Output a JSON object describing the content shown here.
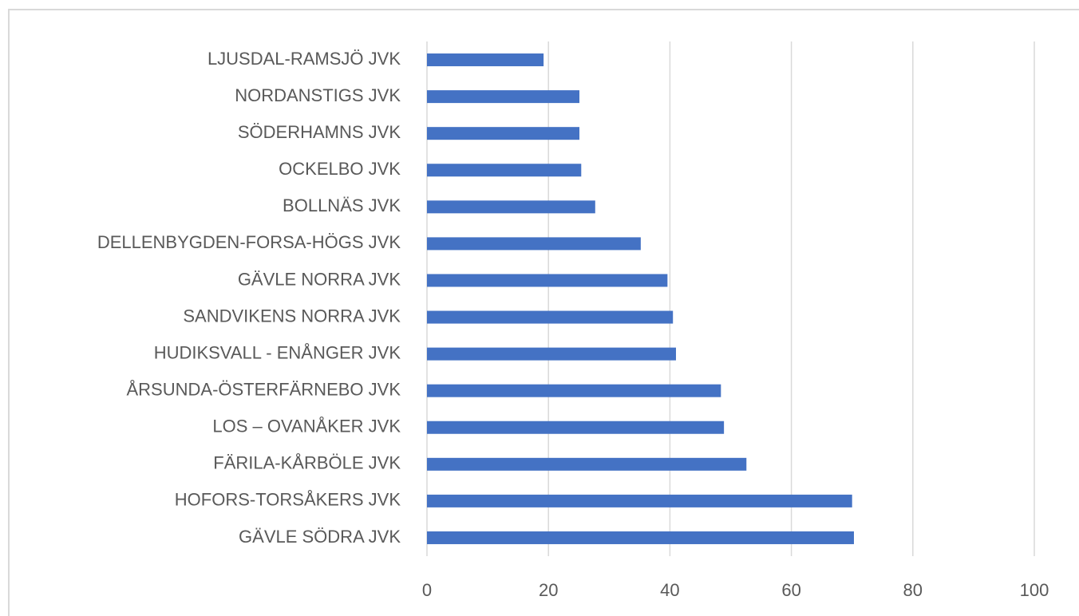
{
  "chart_data": {
    "type": "bar",
    "orientation": "horizontal",
    "categories": [
      "LJUSDAL-RAMSJÖ JVK",
      "NORDANSTIGS JVK",
      "SÖDERHAMNS JVK",
      "OCKELBO JVK",
      "BOLLNÄS JVK",
      "DELLENBYGDEN-FORSA-HÖGS JVK",
      "GÄVLE NORRA JVK",
      "SANDVIKENS NORRA JVK",
      "HUDIKSVALL - ENÅNGER JVK",
      "ÅRSUNDA-ÖSTERFÄRNEBO JVK",
      "LOS – OVANÅKER JVK",
      "FÄRILA-KÅRBÖLE JVK",
      "HOFORS-TORSÅKERS JVK",
      "GÄVLE SÖDRA JVK"
    ],
    "values": [
      19.2,
      25.1,
      25.1,
      25.4,
      27.7,
      35.2,
      39.6,
      40.5,
      41.0,
      48.4,
      48.9,
      52.6,
      70.0,
      70.3
    ],
    "color": "#4472c4",
    "xlim": [
      0,
      100
    ],
    "xticks": [
      0,
      20,
      40,
      60,
      80,
      100
    ],
    "grid": true
  }
}
